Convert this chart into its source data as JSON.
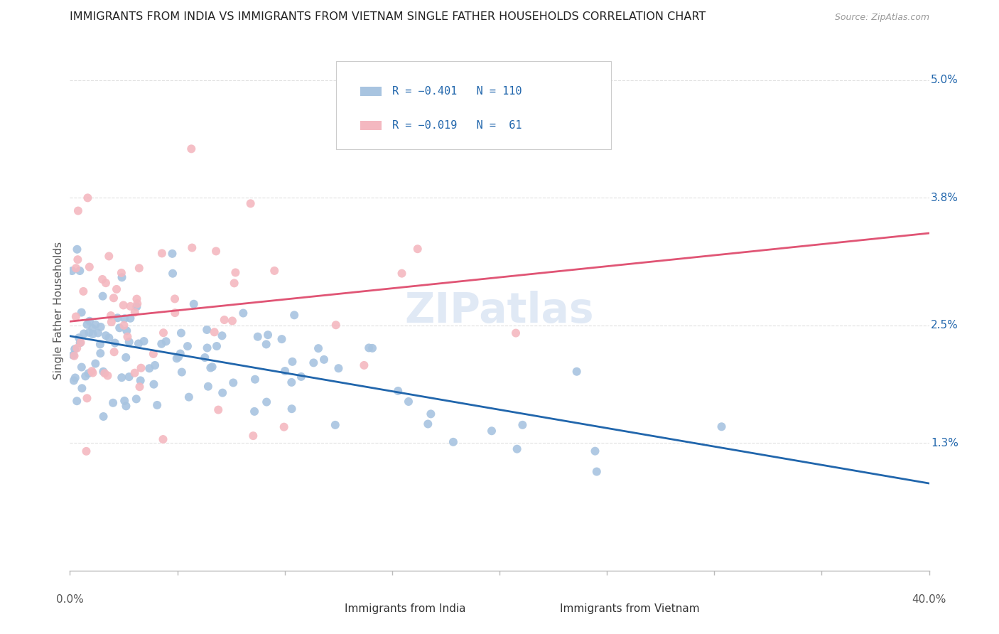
{
  "title": "IMMIGRANTS FROM INDIA VS IMMIGRANTS FROM VIETNAM SINGLE FATHER HOUSEHOLDS CORRELATION CHART",
  "source": "Source: ZipAtlas.com",
  "ylabel": "Single Father Households",
  "xlim": [
    0.0,
    0.4
  ],
  "ylim": [
    0.0,
    0.053
  ],
  "ytick_vals": [
    0.013,
    0.025,
    0.038,
    0.05
  ],
  "ytick_labels": [
    "1.3%",
    "2.5%",
    "3.8%",
    "5.0%"
  ],
  "color_india": "#a8c4e0",
  "color_vietnam": "#f4b8c0",
  "line_color_india": "#2166ac",
  "line_color_vietnam": "#e05575",
  "watermark": "ZIPatlas",
  "background_color": "#ffffff",
  "grid_color": "#e0e0e0",
  "title_color": "#222222",
  "label_color": "#2166ac"
}
